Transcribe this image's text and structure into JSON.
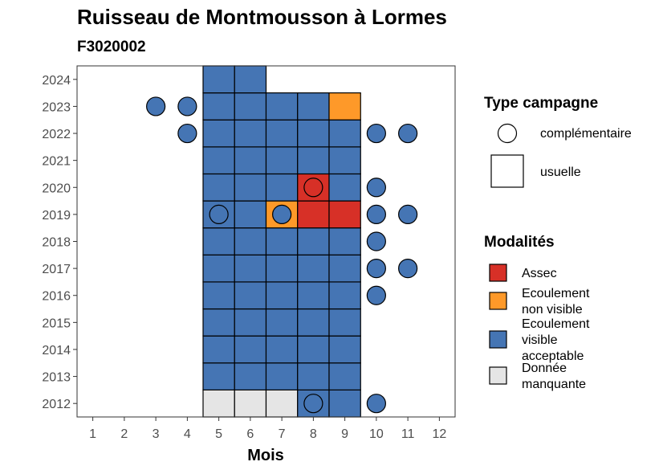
{
  "chart_data": {
    "type": "heatmap",
    "title": "Ruisseau de Montmousson à Lormes",
    "subtitle": "F3020002",
    "xlabel": "Mois",
    "ylabel": "",
    "x_ticks": [
      "1",
      "2",
      "3",
      "4",
      "5",
      "6",
      "7",
      "8",
      "9",
      "10",
      "11",
      "12"
    ],
    "y_ticks": [
      "2012",
      "2013",
      "2014",
      "2015",
      "2016",
      "2017",
      "2018",
      "2019",
      "2020",
      "2021",
      "2022",
      "2023",
      "2024"
    ],
    "xlim": [
      0.5,
      12.5
    ],
    "ylim": [
      2011.5,
      2024.5
    ],
    "grid": false,
    "legend_placement": "right",
    "colors": {
      "Assec": "#d73027",
      "Ecoulement non visible": "#fe9929",
      "Ecoulement visible acceptable": "#4575b4",
      "Donnée manquante": "#e5e5e5"
    },
    "usuelle": [
      {
        "year": 2012,
        "month": 5,
        "mod": "Donnée manquante"
      },
      {
        "year": 2012,
        "month": 6,
        "mod": "Donnée manquante"
      },
      {
        "year": 2012,
        "month": 7,
        "mod": "Donnée manquante"
      },
      {
        "year": 2012,
        "month": 8,
        "mod": "Ecoulement visible acceptable"
      },
      {
        "year": 2012,
        "month": 9,
        "mod": "Ecoulement visible acceptable"
      },
      {
        "year": 2013,
        "month": 5,
        "mod": "Ecoulement visible acceptable"
      },
      {
        "year": 2013,
        "month": 6,
        "mod": "Ecoulement visible acceptable"
      },
      {
        "year": 2013,
        "month": 7,
        "mod": "Ecoulement visible acceptable"
      },
      {
        "year": 2013,
        "month": 8,
        "mod": "Ecoulement visible acceptable"
      },
      {
        "year": 2013,
        "month": 9,
        "mod": "Ecoulement visible acceptable"
      },
      {
        "year": 2014,
        "month": 5,
        "mod": "Ecoulement visible acceptable"
      },
      {
        "year": 2014,
        "month": 6,
        "mod": "Ecoulement visible acceptable"
      },
      {
        "year": 2014,
        "month": 7,
        "mod": "Ecoulement visible acceptable"
      },
      {
        "year": 2014,
        "month": 8,
        "mod": "Ecoulement visible acceptable"
      },
      {
        "year": 2014,
        "month": 9,
        "mod": "Ecoulement visible acceptable"
      },
      {
        "year": 2015,
        "month": 5,
        "mod": "Ecoulement visible acceptable"
      },
      {
        "year": 2015,
        "month": 6,
        "mod": "Ecoulement visible acceptable"
      },
      {
        "year": 2015,
        "month": 7,
        "mod": "Ecoulement visible acceptable"
      },
      {
        "year": 2015,
        "month": 8,
        "mod": "Ecoulement visible acceptable"
      },
      {
        "year": 2015,
        "month": 9,
        "mod": "Ecoulement visible acceptable"
      },
      {
        "year": 2016,
        "month": 5,
        "mod": "Ecoulement visible acceptable"
      },
      {
        "year": 2016,
        "month": 6,
        "mod": "Ecoulement visible acceptable"
      },
      {
        "year": 2016,
        "month": 7,
        "mod": "Ecoulement visible acceptable"
      },
      {
        "year": 2016,
        "month": 8,
        "mod": "Ecoulement visible acceptable"
      },
      {
        "year": 2016,
        "month": 9,
        "mod": "Ecoulement visible acceptable"
      },
      {
        "year": 2017,
        "month": 5,
        "mod": "Ecoulement visible acceptable"
      },
      {
        "year": 2017,
        "month": 6,
        "mod": "Ecoulement visible acceptable"
      },
      {
        "year": 2017,
        "month": 7,
        "mod": "Ecoulement visible acceptable"
      },
      {
        "year": 2017,
        "month": 8,
        "mod": "Ecoulement visible acceptable"
      },
      {
        "year": 2017,
        "month": 9,
        "mod": "Ecoulement visible acceptable"
      },
      {
        "year": 2018,
        "month": 5,
        "mod": "Ecoulement visible acceptable"
      },
      {
        "year": 2018,
        "month": 6,
        "mod": "Ecoulement visible acceptable"
      },
      {
        "year": 2018,
        "month": 7,
        "mod": "Ecoulement visible acceptable"
      },
      {
        "year": 2018,
        "month": 8,
        "mod": "Ecoulement visible acceptable"
      },
      {
        "year": 2018,
        "month": 9,
        "mod": "Ecoulement visible acceptable"
      },
      {
        "year": 2019,
        "month": 5,
        "mod": "Ecoulement visible acceptable"
      },
      {
        "year": 2019,
        "month": 6,
        "mod": "Ecoulement visible acceptable"
      },
      {
        "year": 2019,
        "month": 7,
        "mod": "Ecoulement non visible"
      },
      {
        "year": 2019,
        "month": 8,
        "mod": "Assec"
      },
      {
        "year": 2019,
        "month": 9,
        "mod": "Assec"
      },
      {
        "year": 2020,
        "month": 5,
        "mod": "Ecoulement visible acceptable"
      },
      {
        "year": 2020,
        "month": 6,
        "mod": "Ecoulement visible acceptable"
      },
      {
        "year": 2020,
        "month": 7,
        "mod": "Ecoulement visible acceptable"
      },
      {
        "year": 2020,
        "month": 8,
        "mod": "Assec"
      },
      {
        "year": 2020,
        "month": 9,
        "mod": "Ecoulement visible acceptable"
      },
      {
        "year": 2021,
        "month": 5,
        "mod": "Ecoulement visible acceptable"
      },
      {
        "year": 2021,
        "month": 6,
        "mod": "Ecoulement visible acceptable"
      },
      {
        "year": 2021,
        "month": 7,
        "mod": "Ecoulement visible acceptable"
      },
      {
        "year": 2021,
        "month": 8,
        "mod": "Ecoulement visible acceptable"
      },
      {
        "year": 2021,
        "month": 9,
        "mod": "Ecoulement visible acceptable"
      },
      {
        "year": 2022,
        "month": 5,
        "mod": "Ecoulement visible acceptable"
      },
      {
        "year": 2022,
        "month": 6,
        "mod": "Ecoulement visible acceptable"
      },
      {
        "year": 2022,
        "month": 7,
        "mod": "Ecoulement visible acceptable"
      },
      {
        "year": 2022,
        "month": 8,
        "mod": "Ecoulement visible acceptable"
      },
      {
        "year": 2022,
        "month": 9,
        "mod": "Ecoulement visible acceptable"
      },
      {
        "year": 2023,
        "month": 5,
        "mod": "Ecoulement visible acceptable"
      },
      {
        "year": 2023,
        "month": 6,
        "mod": "Ecoulement visible acceptable"
      },
      {
        "year": 2023,
        "month": 7,
        "mod": "Ecoulement visible acceptable"
      },
      {
        "year": 2023,
        "month": 8,
        "mod": "Ecoulement visible acceptable"
      },
      {
        "year": 2023,
        "month": 9,
        "mod": "Ecoulement non visible"
      },
      {
        "year": 2024,
        "month": 5,
        "mod": "Ecoulement visible acceptable"
      },
      {
        "year": 2024,
        "month": 6,
        "mod": "Ecoulement visible acceptable"
      }
    ],
    "complementaire": [
      {
        "year": 2012,
        "month": 8,
        "mod": "Ecoulement visible acceptable"
      },
      {
        "year": 2012,
        "month": 10,
        "mod": "Ecoulement visible acceptable"
      },
      {
        "year": 2016,
        "month": 10,
        "mod": "Ecoulement visible acceptable"
      },
      {
        "year": 2017,
        "month": 10,
        "mod": "Ecoulement visible acceptable"
      },
      {
        "year": 2017,
        "month": 11,
        "mod": "Ecoulement visible acceptable"
      },
      {
        "year": 2018,
        "month": 10,
        "mod": "Ecoulement visible acceptable"
      },
      {
        "year": 2019,
        "month": 5,
        "mod": "Ecoulement visible acceptable"
      },
      {
        "year": 2019,
        "month": 7,
        "mod": "Ecoulement visible acceptable"
      },
      {
        "year": 2019,
        "month": 10,
        "mod": "Ecoulement visible acceptable"
      },
      {
        "year": 2019,
        "month": 11,
        "mod": "Ecoulement visible acceptable"
      },
      {
        "year": 2020,
        "month": 8,
        "mod": "Assec"
      },
      {
        "year": 2020,
        "month": 10,
        "mod": "Ecoulement visible acceptable"
      },
      {
        "year": 2022,
        "month": 4,
        "mod": "Ecoulement visible acceptable"
      },
      {
        "year": 2022,
        "month": 10,
        "mod": "Ecoulement visible acceptable"
      },
      {
        "year": 2022,
        "month": 11,
        "mod": "Ecoulement visible acceptable"
      },
      {
        "year": 2023,
        "month": 3,
        "mod": "Ecoulement visible acceptable"
      },
      {
        "year": 2023,
        "month": 4,
        "mod": "Ecoulement visible acceptable"
      }
    ]
  },
  "legend": {
    "type_title": "Type campagne",
    "type_items": [
      "complémentaire",
      "usuelle"
    ],
    "mod_title": "Modalités",
    "mod_items": [
      {
        "lines": [
          "Assec"
        ],
        "color": "#d73027"
      },
      {
        "lines": [
          "Ecoulement",
          "non visible"
        ],
        "color": "#fe9929"
      },
      {
        "lines": [
          "Ecoulement",
          "visible",
          "acceptable"
        ],
        "color": "#4575b4"
      },
      {
        "lines": [
          "Donnée",
          "manquante"
        ],
        "color": "#e5e5e5"
      }
    ]
  }
}
